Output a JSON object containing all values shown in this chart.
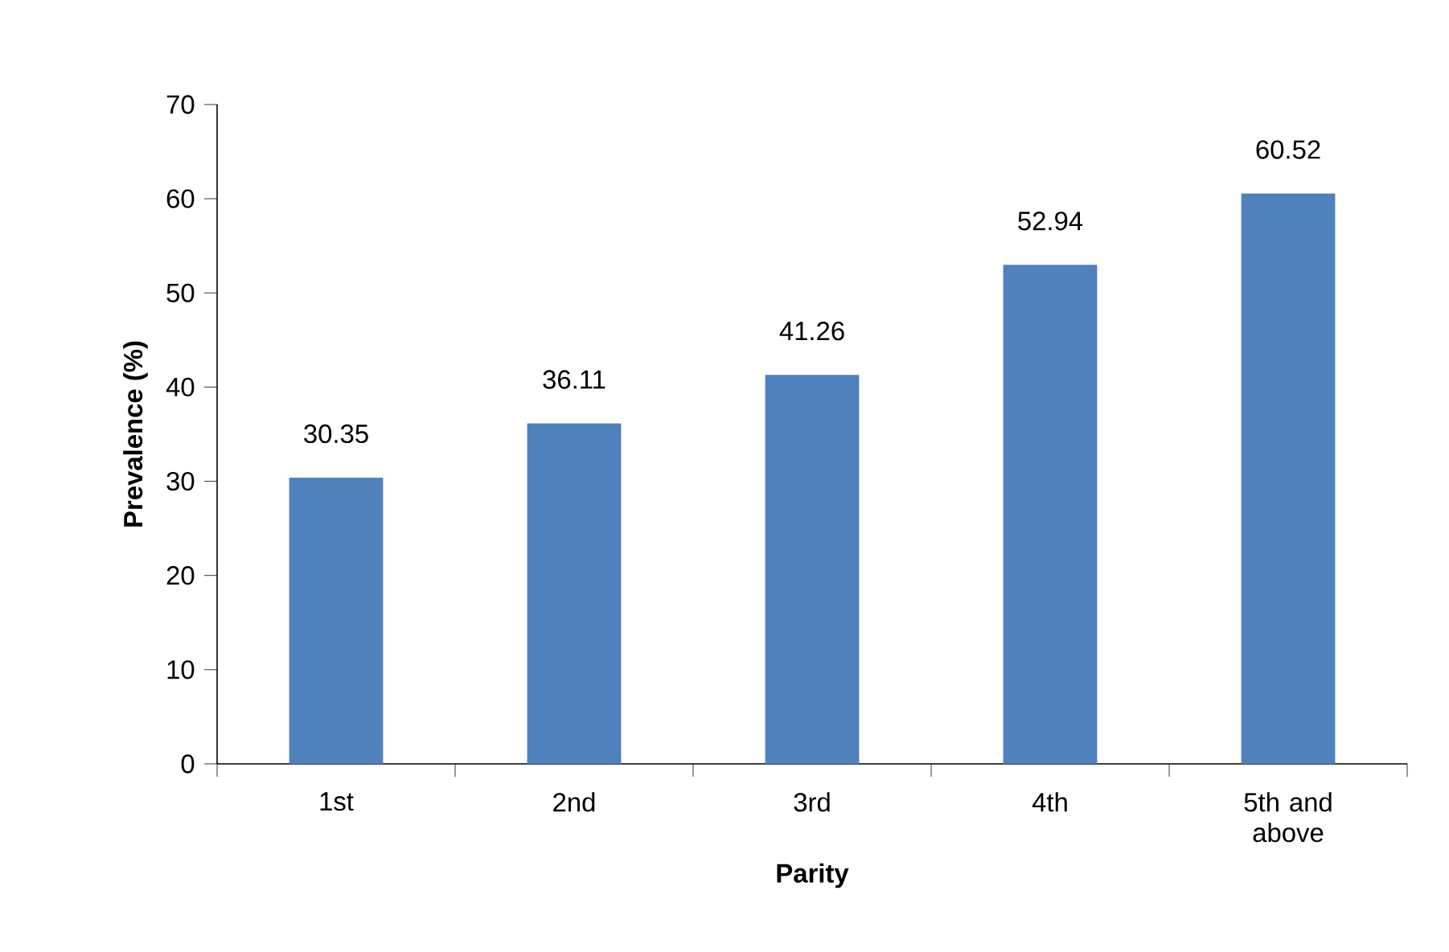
{
  "chart_data": {
    "type": "bar",
    "xlabel": "Parity",
    "ylabel": "Prevalence (%)",
    "categories": [
      "1st",
      "2nd",
      "3rd",
      "4th",
      "5th and above"
    ],
    "values": [
      30.35,
      36.11,
      41.26,
      52.94,
      60.52
    ],
    "color": "#4f81bd",
    "ylim": [
      0,
      70
    ],
    "yticks": [
      0,
      10,
      20,
      30,
      40,
      50,
      60,
      70
    ],
    "data_labels": true
  }
}
